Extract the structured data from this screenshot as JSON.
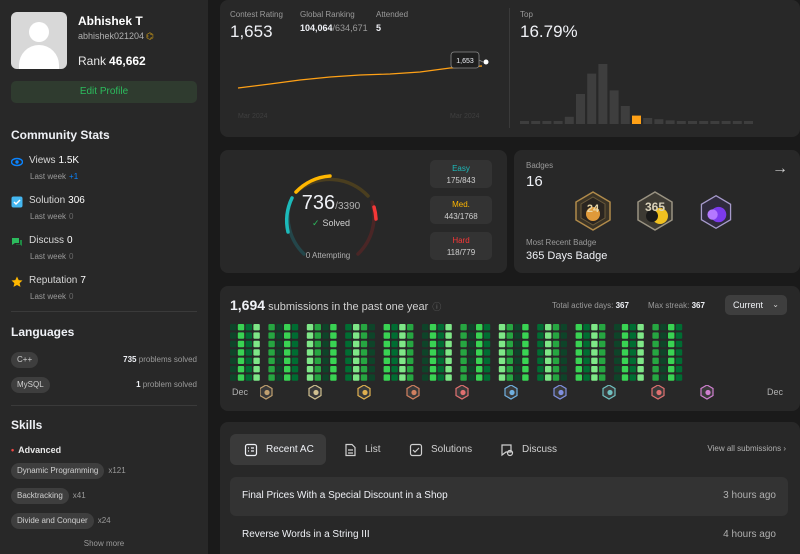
{
  "profile": {
    "name": "Abhishek T",
    "handle": "abhishek021204",
    "rank_label": "Rank",
    "rank_value": "46,662",
    "edit_label": "Edit Profile"
  },
  "community": {
    "title": "Community Stats",
    "items": [
      {
        "icon": "eye-icon",
        "label": "Views",
        "value": "1.5K",
        "sub": "Last week",
        "delta": "+1",
        "delta_color": "#0a84ff",
        "color": "#0a84ff"
      },
      {
        "icon": "check-square-icon",
        "label": "Solution",
        "value": "306",
        "sub": "Last week",
        "delta": "0",
        "delta_color": "#6b6b6b",
        "color": "#44b7f1"
      },
      {
        "icon": "chat-bubble-icon",
        "label": "Discuss",
        "value": "0",
        "sub": "Last week",
        "delta": "0",
        "delta_color": "#6b6b6b",
        "color": "#2cbb5d"
      },
      {
        "icon": "star-icon",
        "label": "Reputation",
        "value": "7",
        "sub": "Last week",
        "delta": "0",
        "delta_color": "#6b6b6b",
        "color": "#ffb700"
      }
    ]
  },
  "languages": {
    "title": "Languages",
    "items": [
      {
        "name": "C++",
        "count": "735",
        "suffix": "problems solved"
      },
      {
        "name": "MySQL",
        "count": "1",
        "suffix": "problem solved"
      }
    ]
  },
  "skills": {
    "title": "Skills",
    "level": "Advanced",
    "items": [
      {
        "name": "Dynamic Programming",
        "count": "x121"
      },
      {
        "name": "Backtracking",
        "count": "x41"
      },
      {
        "name": "Divide and Conquer",
        "count": "x24"
      }
    ],
    "show_more": "Show more"
  },
  "contest": {
    "rating_label": "Contest Rating",
    "rating_value": "1,653",
    "global_label": "Global Ranking",
    "global_value": "104,064",
    "global_total": "/634,671",
    "attended_label": "Attended",
    "attended_value": "5",
    "top_label": "Top",
    "top_value": "16.79%",
    "tooltip": "1,653",
    "x_start": "Mar 2024",
    "x_end": "Mar 2024",
    "line_color": "#ffa116",
    "histogram": [
      0.04,
      0.04,
      0.04,
      0.04,
      0.12,
      0.5,
      0.84,
      1.0,
      0.56,
      0.3,
      0.14,
      0.1,
      0.08,
      0.06,
      0.04,
      0.04,
      0.04,
      0.04,
      0.04,
      0.04,
      0.04
    ],
    "highlight_index": 10
  },
  "solved": {
    "solved": "736",
    "total": "/3390",
    "solved_label": "Solved",
    "attempting": "0 Attempting",
    "difficulty": [
      {
        "name": "Easy",
        "value": "175/843",
        "color": "#1cbaba"
      },
      {
        "name": "Med.",
        "value": "443/1768",
        "color": "#ffb700"
      },
      {
        "name": "Hard",
        "value": "118/779",
        "color": "#f63737"
      }
    ]
  },
  "badges": {
    "title": "Badges",
    "count": "16",
    "recent_title": "Most Recent Badge",
    "recent_name": "365 Days Badge"
  },
  "submissions": {
    "count": "1,694",
    "title_suffix": "submissions in the past one year",
    "active_label": "Total active days:",
    "active_value": "367",
    "streak_label": "Max streak:",
    "streak_value": "367",
    "year_select": "Current",
    "month_start": "Dec",
    "month_end": "Dec"
  },
  "recent": {
    "tabs": [
      {
        "label": "Recent AC",
        "icon": "recent-ac-icon"
      },
      {
        "label": "List",
        "icon": "list-icon"
      },
      {
        "label": "Solutions",
        "icon": "solutions-icon"
      },
      {
        "label": "Discuss",
        "icon": "discuss-icon"
      }
    ],
    "view_all": "View all submissions",
    "rows": [
      {
        "title": "Final Prices With a Special Discount in a Shop",
        "time": "3 hours ago"
      },
      {
        "title": "Reverse Words in a String III",
        "time": "4 hours ago"
      }
    ]
  }
}
